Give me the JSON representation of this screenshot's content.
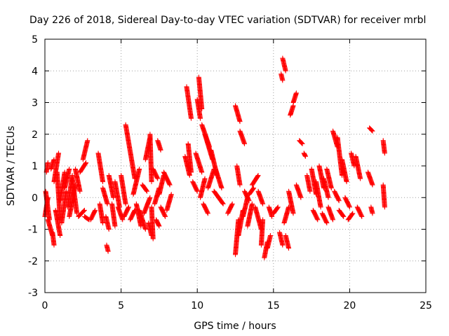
{
  "chart_data": {
    "type": "scatter",
    "title": "Day 226 of 2018, Sidereal Day-to-day VTEC variation (SDTVAR) for receiver mrbl",
    "xlabel": "GPS time / hours",
    "ylabel": "SDTVAR / TECUs",
    "xlim": [
      0,
      25
    ],
    "ylim": [
      -3,
      5
    ],
    "x_ticks": [
      0,
      5,
      10,
      15,
      20,
      25
    ],
    "y_ticks": [
      -3,
      -2,
      -1,
      0,
      1,
      2,
      3,
      4,
      5
    ],
    "x_tick_labels": [
      "0",
      "5",
      "10",
      "15",
      "20",
      "25"
    ],
    "y_tick_labels": [
      "-3",
      "-2",
      "-1",
      "0",
      "1",
      "2",
      "3",
      "4",
      "5"
    ],
    "grid": true,
    "marker": "+",
    "marker_color": "#ff0000",
    "segments": [
      [
        0.0,
        -0.6,
        0.2,
        0.0
      ],
      [
        0.05,
        0.2,
        0.3,
        -0.7
      ],
      [
        0.1,
        0.8,
        0.2,
        1.1
      ],
      [
        0.2,
        -0.7,
        0.5,
        -1.2
      ],
      [
        0.4,
        0.9,
        0.6,
        1.2
      ],
      [
        0.5,
        -1.1,
        0.6,
        -1.5
      ],
      [
        0.6,
        0.5,
        0.9,
        1.4
      ],
      [
        0.7,
        -0.4,
        1.0,
        -1.2
      ],
      [
        0.8,
        0.8,
        1.0,
        -0.7
      ],
      [
        1.0,
        -0.1,
        1.3,
        0.8
      ],
      [
        1.1,
        -0.8,
        1.4,
        0.2
      ],
      [
        1.3,
        0.3,
        1.6,
        0.9
      ],
      [
        1.5,
        -0.3,
        1.8,
        0.7
      ],
      [
        1.6,
        -0.6,
        2.0,
        0.4
      ],
      [
        1.8,
        0.6,
        2.1,
        -0.5
      ],
      [
        2.0,
        0.9,
        2.3,
        0.2
      ],
      [
        2.2,
        -0.6,
        2.6,
        -0.4
      ],
      [
        2.3,
        0.8,
        2.7,
        1.1
      ],
      [
        2.5,
        1.2,
        2.8,
        1.8
      ],
      [
        2.6,
        -0.6,
        2.9,
        -0.7
      ],
      [
        3.0,
        -0.7,
        3.3,
        -0.4
      ],
      [
        3.5,
        1.4,
        3.8,
        0.5
      ],
      [
        3.6,
        -0.2,
        3.8,
        -0.8
      ],
      [
        3.8,
        0.3,
        4.1,
        -0.2
      ],
      [
        4.0,
        -0.6,
        4.2,
        -1.0
      ],
      [
        4.05,
        -1.5,
        4.15,
        -1.7
      ],
      [
        4.2,
        0.7,
        4.5,
        0.0
      ],
      [
        4.4,
        -0.2,
        4.6,
        -0.9
      ],
      [
        4.6,
        0.5,
        4.9,
        -0.3
      ],
      [
        4.8,
        -0.3,
        5.1,
        -0.7
      ],
      [
        5.0,
        0.7,
        5.3,
        -0.2
      ],
      [
        5.2,
        -0.6,
        5.5,
        -0.3
      ],
      [
        5.3,
        2.3,
        5.9,
        0.6
      ],
      [
        5.6,
        -0.7,
        5.9,
        -0.4
      ],
      [
        5.8,
        0.1,
        6.2,
        0.9
      ],
      [
        6.0,
        -0.2,
        6.3,
        -0.9
      ],
      [
        6.2,
        -0.4,
        6.6,
        -1.0
      ],
      [
        6.4,
        0.4,
        6.7,
        0.2
      ],
      [
        6.5,
        -0.5,
        6.9,
        0.0
      ],
      [
        6.6,
        1.2,
        6.9,
        1.9
      ],
      [
        6.8,
        -0.8,
        7.0,
        -1.2
      ],
      [
        6.9,
        2.0,
        7.0,
        0.5
      ],
      [
        7.0,
        -0.3,
        7.1,
        -1.3
      ],
      [
        7.1,
        0.9,
        7.4,
        0.6
      ],
      [
        7.2,
        -0.2,
        7.5,
        0.3
      ],
      [
        7.3,
        -0.7,
        7.5,
        -0.9
      ],
      [
        7.4,
        1.8,
        7.6,
        1.5
      ],
      [
        7.5,
        0.1,
        7.8,
        0.7
      ],
      [
        7.6,
        -0.3,
        7.9,
        -0.6
      ],
      [
        7.8,
        0.8,
        8.2,
        0.4
      ],
      [
        8.0,
        -0.4,
        8.3,
        0.1
      ],
      [
        9.3,
        3.5,
        9.6,
        2.5
      ],
      [
        9.2,
        1.3,
        9.5,
        0.7
      ],
      [
        9.4,
        1.7,
        9.6,
        0.8
      ],
      [
        9.7,
        0.5,
        10.0,
        0.2
      ],
      [
        9.9,
        1.4,
        10.3,
        0.8
      ],
      [
        10.0,
        3.1,
        10.2,
        2.5
      ],
      [
        10.1,
        3.8,
        10.3,
        2.8
      ],
      [
        10.2,
        0.0,
        10.5,
        0.6
      ],
      [
        10.3,
        2.3,
        10.8,
        1.6
      ],
      [
        10.4,
        -0.2,
        10.7,
        -0.5
      ],
      [
        10.5,
        2.0,
        11.0,
        1.2
      ],
      [
        10.7,
        0.3,
        11.1,
        0.9
      ],
      [
        10.9,
        1.5,
        11.3,
        0.7
      ],
      [
        11.1,
        0.2,
        11.4,
        0.0
      ],
      [
        11.2,
        0.9,
        11.6,
        0.3
      ],
      [
        11.4,
        0.0,
        11.7,
        -0.2
      ],
      [
        12.0,
        -0.5,
        12.3,
        -0.2
      ],
      [
        12.5,
        2.9,
        12.8,
        2.4
      ],
      [
        12.5,
        -1.8,
        12.7,
        -0.7
      ],
      [
        12.6,
        1.0,
        12.8,
        0.4
      ],
      [
        12.7,
        -1.2,
        13.0,
        -0.4
      ],
      [
        12.8,
        2.1,
        13.1,
        1.7
      ],
      [
        13.0,
        -0.6,
        13.3,
        0.0
      ],
      [
        13.1,
        0.2,
        13.4,
        -0.1
      ],
      [
        13.3,
        -0.9,
        13.6,
        -0.2
      ],
      [
        13.4,
        0.1,
        13.7,
        0.3
      ],
      [
        13.6,
        0.4,
        14.0,
        0.7
      ],
      [
        13.8,
        -0.3,
        14.2,
        -1.0
      ],
      [
        14.0,
        0.2,
        14.3,
        -0.2
      ],
      [
        14.2,
        -1.5,
        14.3,
        -0.7
      ],
      [
        14.4,
        -1.9,
        14.6,
        -1.4
      ],
      [
        14.6,
        -1.6,
        14.8,
        -1.2
      ],
      [
        14.7,
        -0.3,
        14.9,
        -0.6
      ],
      [
        15.0,
        -0.5,
        15.3,
        -0.3
      ],
      [
        15.4,
        -1.1,
        15.6,
        -1.5
      ],
      [
        15.5,
        3.9,
        15.6,
        3.7
      ],
      [
        15.6,
        4.4,
        15.8,
        4.0
      ],
      [
        15.7,
        -0.8,
        16.0,
        -0.3
      ],
      [
        15.8,
        -1.2,
        16.0,
        -1.6
      ],
      [
        16.0,
        0.2,
        16.3,
        -0.5
      ],
      [
        16.1,
        2.6,
        16.3,
        2.9
      ],
      [
        16.3,
        3.0,
        16.5,
        3.3
      ],
      [
        16.5,
        0.4,
        16.8,
        0.0
      ],
      [
        16.7,
        1.8,
        16.9,
        1.7
      ],
      [
        17.0,
        1.4,
        17.1,
        1.3
      ],
      [
        17.2,
        0.7,
        17.4,
        0.2
      ],
      [
        17.5,
        0.9,
        17.8,
        0.1
      ],
      [
        17.6,
        -0.4,
        17.9,
        -0.7
      ],
      [
        17.8,
        0.5,
        18.1,
        -0.3
      ],
      [
        18.0,
        1.0,
        18.3,
        0.3
      ],
      [
        18.2,
        -0.5,
        18.5,
        -0.8
      ],
      [
        18.3,
        0.6,
        18.6,
        0.0
      ],
      [
        18.5,
        0.9,
        18.8,
        0.3
      ],
      [
        18.6,
        -0.3,
        18.9,
        -0.7
      ],
      [
        18.9,
        2.1,
        19.2,
        1.6
      ],
      [
        19.0,
        0.2,
        19.3,
        -0.1
      ],
      [
        19.2,
        1.9,
        19.5,
        0.7
      ],
      [
        19.3,
        -0.4,
        19.6,
        -0.6
      ],
      [
        19.5,
        1.2,
        19.8,
        0.5
      ],
      [
        19.7,
        0.0,
        20.0,
        -0.3
      ],
      [
        19.9,
        -0.7,
        20.2,
        -0.5
      ],
      [
        20.1,
        1.4,
        20.3,
        1.0
      ],
      [
        20.4,
        1.3,
        20.7,
        0.6
      ],
      [
        20.5,
        -0.3,
        20.8,
        -0.6
      ],
      [
        21.3,
        2.2,
        21.5,
        2.1
      ],
      [
        21.2,
        0.8,
        21.5,
        0.4
      ],
      [
        21.4,
        -0.3,
        21.5,
        -0.5
      ],
      [
        22.2,
        1.8,
        22.3,
        1.4
      ],
      [
        22.2,
        0.4,
        22.3,
        -0.3
      ]
    ]
  }
}
